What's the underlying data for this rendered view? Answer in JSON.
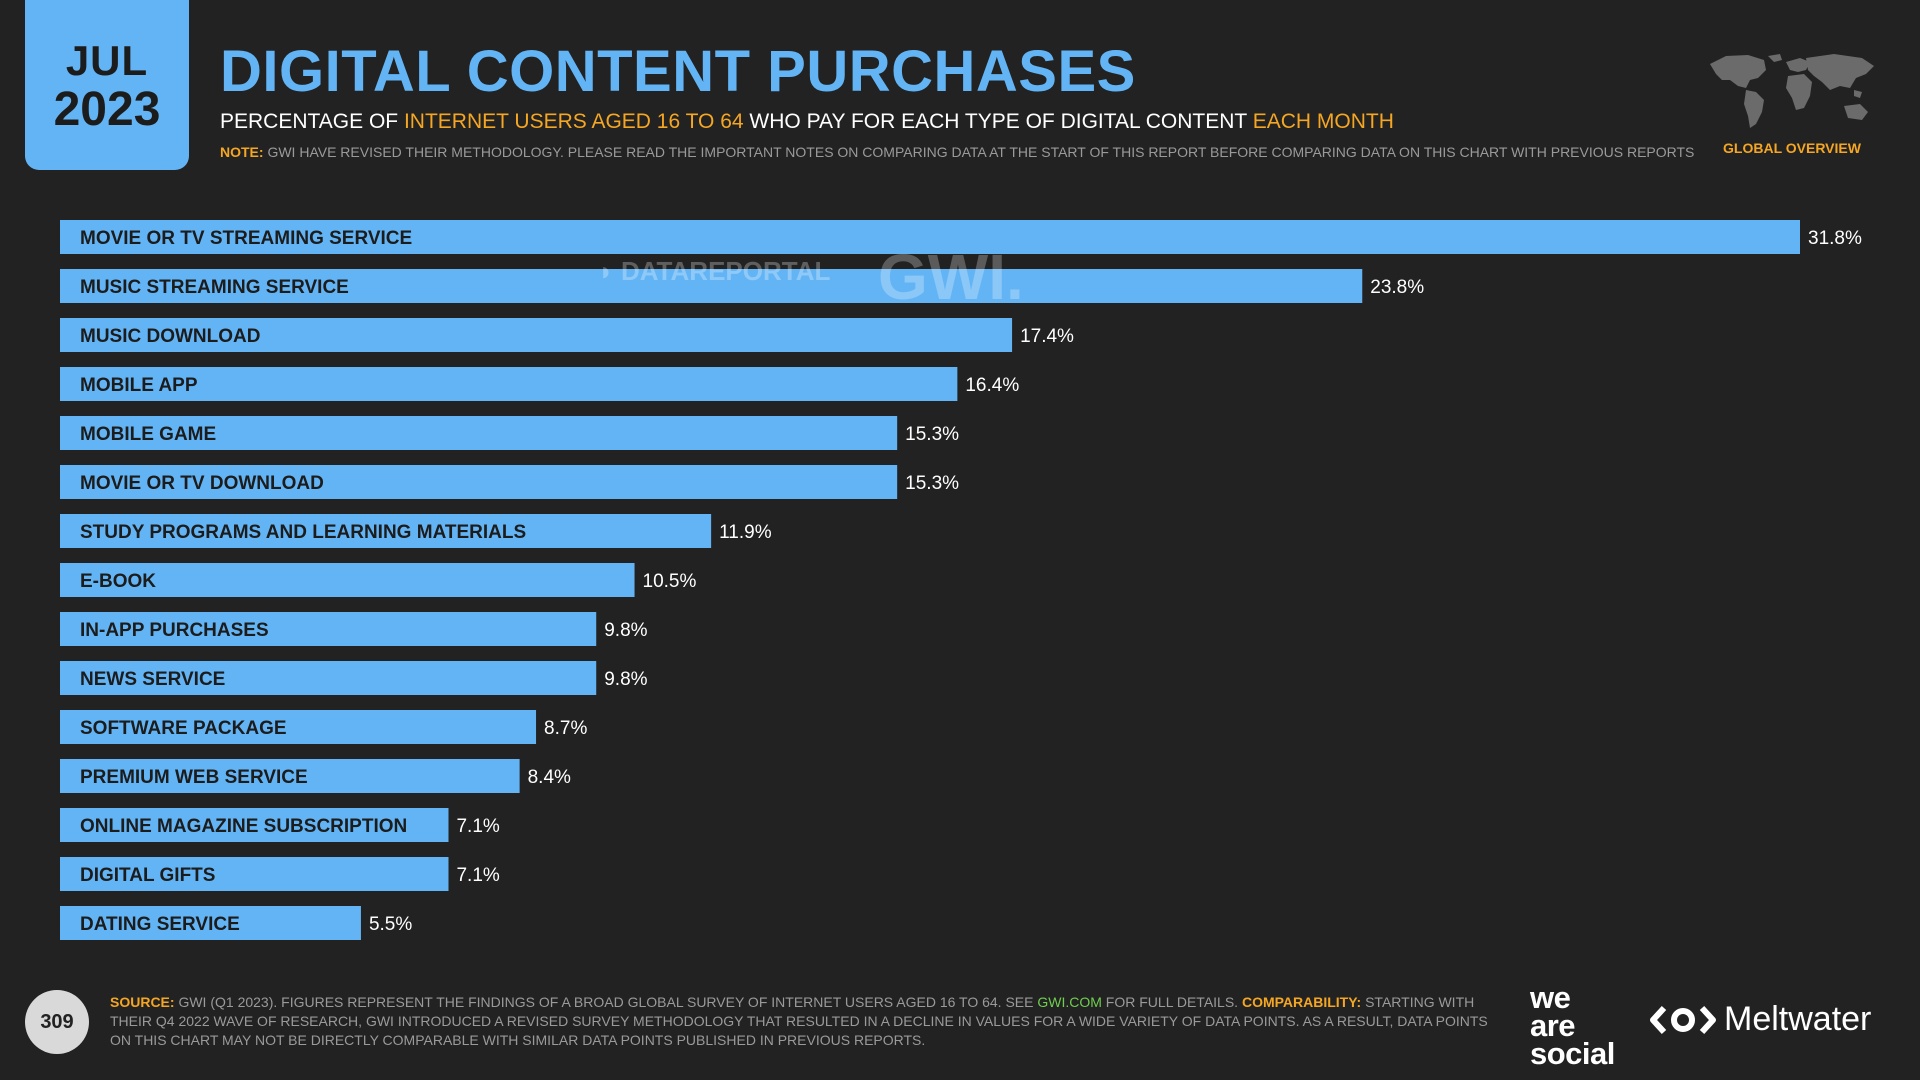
{
  "header": {
    "date_month": "JUL",
    "date_year": "2023",
    "title": "DIGITAL CONTENT PURCHASES",
    "subtitle_pre": "PERCENTAGE OF ",
    "subtitle_hl1": "INTERNET USERS AGED 16 TO 64",
    "subtitle_mid": " WHO PAY FOR EACH TYPE OF DIGITAL CONTENT ",
    "subtitle_hl2": "EACH MONTH",
    "note_label": "NOTE:",
    "note_text": " GWI HAVE REVISED THEIR METHODOLOGY. PLEASE READ THE IMPORTANT NOTES ON COMPARING DATA AT THE START OF THIS REPORT BEFORE COMPARING DATA ON THIS CHART WITH PREVIOUS REPORTS",
    "region_label": "GLOBAL OVERVIEW"
  },
  "watermarks": {
    "datareportal": "DATAREPORTAL",
    "gwi": "GWI."
  },
  "chart_data": {
    "type": "bar",
    "orientation": "horizontal",
    "title": "DIGITAL CONTENT PURCHASES",
    "xlabel": "",
    "ylabel": "",
    "unit": "%",
    "xlim": [
      0,
      31.8
    ],
    "categories": [
      "MOVIE OR TV STREAMING SERVICE",
      "MUSIC STREAMING SERVICE",
      "MUSIC DOWNLOAD",
      "MOBILE APP",
      "MOBILE GAME",
      "MOVIE OR TV DOWNLOAD",
      "STUDY PROGRAMS AND LEARNING MATERIALS",
      "E-BOOK",
      "IN-APP PURCHASES",
      "NEWS SERVICE",
      "SOFTWARE PACKAGE",
      "PREMIUM WEB SERVICE",
      "ONLINE MAGAZINE SUBSCRIPTION",
      "DIGITAL GIFTS",
      "DATING SERVICE"
    ],
    "values": [
      31.8,
      23.8,
      17.4,
      16.4,
      15.3,
      15.3,
      11.9,
      10.5,
      9.8,
      9.8,
      8.7,
      8.4,
      7.1,
      7.1,
      5.5
    ],
    "value_labels": [
      "31.8%",
      "23.8%",
      "17.4%",
      "16.4%",
      "15.3%",
      "15.3%",
      "11.9%",
      "10.5%",
      "9.8%",
      "9.8%",
      "8.7%",
      "8.4%",
      "7.1%",
      "7.1%",
      "5.5%"
    ],
    "bar_color": "#63b4f5",
    "grid": false
  },
  "footer": {
    "page_number": "309",
    "source_label": "SOURCE:",
    "source_text1": " GWI (Q1 2023). FIGURES REPRESENT THE FINDINGS OF A BROAD GLOBAL SURVEY OF INTERNET USERS AGED 16 TO 64. SEE ",
    "source_link": "GWI.COM",
    "source_text2": " FOR FULL DETAILS. ",
    "comparability_label": "COMPARABILITY:",
    "comparability_text": " STARTING WITH THEIR Q4 2022 WAVE OF RESEARCH, GWI INTRODUCED A REVISED SURVEY METHODOLOGY THAT RESULTED IN A DECLINE IN VALUES FOR A WIDE VARIETY OF DATA POINTS. AS A RESULT, DATA POINTS ON THIS CHART MAY NOT BE DIRECTLY COMPARABLE WITH SIMILAR DATA POINTS PUBLISHED IN PREVIOUS REPORTS.",
    "brand1_line1": "we",
    "brand1_line2": "are",
    "brand1_line3": "social",
    "brand2": "Meltwater"
  },
  "colors": {
    "background": "#222222",
    "accent_blue": "#63b4f5",
    "accent_orange": "#f5a623",
    "link_green": "#6fcf4f"
  }
}
